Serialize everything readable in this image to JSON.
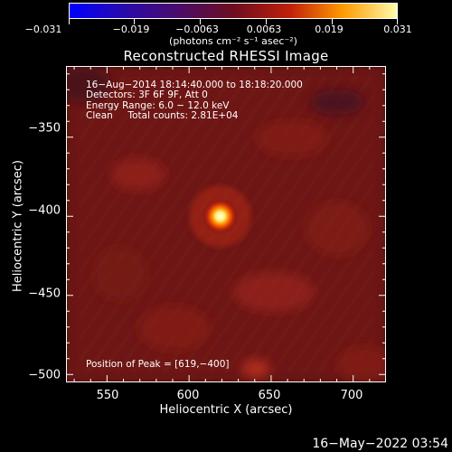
{
  "colorbar": {
    "ticks": [
      "−0.031",
      "−0.019",
      "−0.0063",
      "0.0063",
      "0.019",
      "0.031"
    ],
    "unit": "(photons cm⁻² s⁻¹ asec⁻²)",
    "colors": [
      "#0000ff",
      "#2b0b9c",
      "#4a0c6b",
      "#8a1a1a",
      "#c02a10",
      "#ff8c00",
      "#ffff9e"
    ]
  },
  "title": "Reconstructed RHESSI Image",
  "info": {
    "time": "16−Aug−2014 18:14:40.000 to 18:18:20.000",
    "detectors": "Detectors: 3F 6F 9F, Att 0",
    "energy": "Energy Range: 6.0 − 12.0 keV",
    "clean": "Clean     Total counts: 2.81E+04"
  },
  "peak_text": "Position of Peak = [619,−400]",
  "axes": {
    "xlabel": "Heliocentric X (arcsec)",
    "ylabel": "Heliocentric Y (arcsec)",
    "xticks": [
      "550",
      "600",
      "650",
      "700"
    ],
    "yticks": [
      "−350",
      "−400",
      "−450",
      "−500"
    ],
    "xlim": [
      525,
      720
    ],
    "ylim": [
      -505,
      -305
    ]
  },
  "peak": {
    "x": 619,
    "y": -400
  },
  "timestamp": "16−May−2022 03:54"
}
